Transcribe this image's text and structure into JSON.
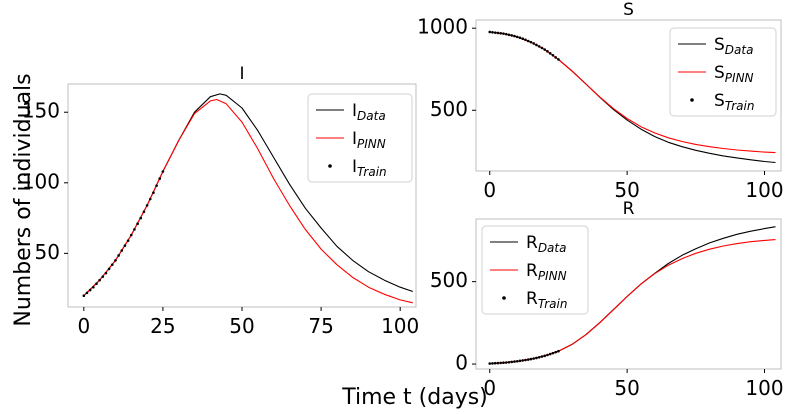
{
  "figure": {
    "ylabel": "Numbers of individuals",
    "xlabel": "Time t (days)"
  },
  "chart_data": [
    {
      "id": "I",
      "type": "line",
      "title": "I",
      "xlim": [
        -5,
        105
      ],
      "ylim": [
        12,
        170
      ],
      "xticks": [
        0,
        25,
        50,
        75,
        100
      ],
      "yticks": [
        50,
        100,
        150
      ],
      "legend_placement": "top-right",
      "legend": [
        {
          "base": "I",
          "sub": "Data",
          "style": "line",
          "color": "#000000"
        },
        {
          "base": "I",
          "sub": "PINN",
          "style": "line",
          "color": "#ff0000"
        },
        {
          "base": "I",
          "sub": "Train",
          "style": "dot",
          "color": "#000000"
        }
      ],
      "series": [
        {
          "name": "I_Data",
          "color": "#000000",
          "x": [
            0,
            5,
            10,
            15,
            20,
            25,
            30,
            35,
            40,
            43,
            45,
            50,
            55,
            60,
            65,
            70,
            75,
            80,
            85,
            90,
            95,
            100,
            104
          ],
          "y": [
            20,
            31,
            45,
            63,
            84,
            108,
            130,
            150,
            161,
            163,
            162,
            153,
            137,
            118,
            99,
            82,
            68,
            55,
            45,
            37,
            31,
            26,
            23
          ]
        },
        {
          "name": "I_PINN",
          "color": "#ff0000",
          "x": [
            0,
            5,
            10,
            15,
            20,
            25,
            30,
            35,
            40,
            42,
            45,
            50,
            55,
            60,
            65,
            70,
            75,
            80,
            85,
            90,
            95,
            100,
            104
          ],
          "y": [
            20,
            31,
            45,
            63,
            84,
            108,
            130,
            149,
            158,
            159,
            156,
            143,
            124,
            103,
            84,
            67,
            53,
            42,
            33,
            26,
            21,
            17,
            15
          ]
        },
        {
          "name": "I_Train",
          "color": "#000000",
          "style": "dots",
          "x": [
            0,
            1,
            2,
            3,
            4,
            5,
            6,
            7,
            8,
            9,
            10,
            11,
            12,
            13,
            14,
            15,
            16,
            17,
            18,
            19,
            20,
            21,
            22,
            23,
            24,
            25
          ],
          "y": [
            20,
            22,
            24,
            26,
            28.5,
            31,
            33.5,
            36,
            39,
            42,
            45,
            48.5,
            52,
            55.5,
            59,
            63,
            67,
            71,
            75,
            79.5,
            84,
            88.5,
            93,
            98,
            103,
            108
          ]
        }
      ]
    },
    {
      "id": "S",
      "type": "line",
      "title": "S",
      "xlim": [
        -5,
        106
      ],
      "ylim": [
        130,
        1050
      ],
      "xticks": [
        0,
        50,
        100
      ],
      "yticks": [
        500,
        1000
      ],
      "legend_placement": "top-right",
      "legend": [
        {
          "base": "S",
          "sub": "Data",
          "style": "line",
          "color": "#000000"
        },
        {
          "base": "S",
          "sub": "PINN",
          "style": "line",
          "color": "#ff0000"
        },
        {
          "base": "S",
          "sub": "Train",
          "style": "dot",
          "color": "#000000"
        }
      ],
      "series": [
        {
          "name": "S_Data",
          "color": "#000000",
          "x": [
            0,
            5,
            10,
            15,
            20,
            25,
            30,
            35,
            40,
            45,
            50,
            55,
            60,
            65,
            70,
            75,
            80,
            85,
            90,
            95,
            100,
            104
          ],
          "y": [
            977,
            967,
            947,
            915,
            870,
            810,
            738,
            660,
            580,
            505,
            440,
            385,
            340,
            305,
            278,
            256,
            238,
            222,
            210,
            198,
            188,
            182
          ]
        },
        {
          "name": "S_PINN",
          "color": "#ff0000",
          "x": [
            0,
            5,
            10,
            15,
            20,
            25,
            30,
            35,
            40,
            45,
            50,
            55,
            60,
            65,
            70,
            75,
            80,
            85,
            90,
            95,
            100,
            104
          ],
          "y": [
            977,
            967,
            947,
            915,
            870,
            810,
            738,
            660,
            582,
            510,
            450,
            400,
            362,
            332,
            310,
            292,
            278,
            267,
            258,
            251,
            245,
            242
          ]
        },
        {
          "name": "S_Train",
          "color": "#000000",
          "style": "dots",
          "x": [
            0,
            1,
            2,
            3,
            4,
            5,
            6,
            7,
            8,
            9,
            10,
            11,
            12,
            13,
            14,
            15,
            16,
            17,
            18,
            19,
            20,
            21,
            22,
            23,
            24,
            25
          ],
          "y": [
            977,
            975,
            973,
            971,
            969,
            967,
            964,
            960,
            956,
            952,
            947,
            942,
            936,
            929,
            922,
            915,
            907,
            898,
            889,
            880,
            870,
            859,
            847,
            835,
            822,
            810
          ]
        }
      ]
    },
    {
      "id": "R",
      "type": "line",
      "title": "R",
      "xlim": [
        -5,
        106
      ],
      "ylim": [
        -30,
        880
      ],
      "xticks": [
        0,
        50,
        100
      ],
      "yticks": [
        0,
        500
      ],
      "legend_placement": "top-left",
      "legend": [
        {
          "base": "R",
          "sub": "Data",
          "style": "line",
          "color": "#000000"
        },
        {
          "base": "R",
          "sub": "PINN",
          "style": "line",
          "color": "#ff0000"
        },
        {
          "base": "R",
          "sub": "Train",
          "style": "dot",
          "color": "#000000"
        }
      ],
      "series": [
        {
          "name": "R_Data",
          "color": "#000000",
          "x": [
            0,
            5,
            10,
            15,
            20,
            25,
            30,
            35,
            40,
            45,
            50,
            55,
            60,
            65,
            70,
            75,
            80,
            85,
            90,
            95,
            100,
            104
          ],
          "y": [
            3,
            8,
            17,
            30,
            50,
            78,
            120,
            178,
            250,
            330,
            410,
            485,
            550,
            610,
            660,
            700,
            735,
            763,
            787,
            806,
            822,
            833
          ]
        },
        {
          "name": "R_PINN",
          "color": "#ff0000",
          "x": [
            0,
            5,
            10,
            15,
            20,
            25,
            30,
            35,
            40,
            45,
            50,
            55,
            60,
            65,
            70,
            75,
            80,
            85,
            90,
            95,
            100,
            104
          ],
          "y": [
            3,
            8,
            17,
            30,
            50,
            78,
            120,
            178,
            250,
            330,
            410,
            485,
            548,
            600,
            640,
            672,
            697,
            716,
            731,
            742,
            750,
            755
          ]
        },
        {
          "name": "R_Train",
          "color": "#000000",
          "style": "dots",
          "x": [
            0,
            1,
            2,
            3,
            4,
            5,
            6,
            7,
            8,
            9,
            10,
            11,
            12,
            13,
            14,
            15,
            16,
            17,
            18,
            19,
            20,
            21,
            22,
            23,
            24,
            25
          ],
          "y": [
            3,
            4,
            5,
            6,
            7,
            8,
            9.5,
            11,
            13,
            15,
            17,
            19.5,
            22,
            24.5,
            27,
            30,
            33.5,
            37,
            41,
            45.5,
            50,
            55,
            60.5,
            66,
            72,
            78
          ]
        }
      ]
    }
  ]
}
